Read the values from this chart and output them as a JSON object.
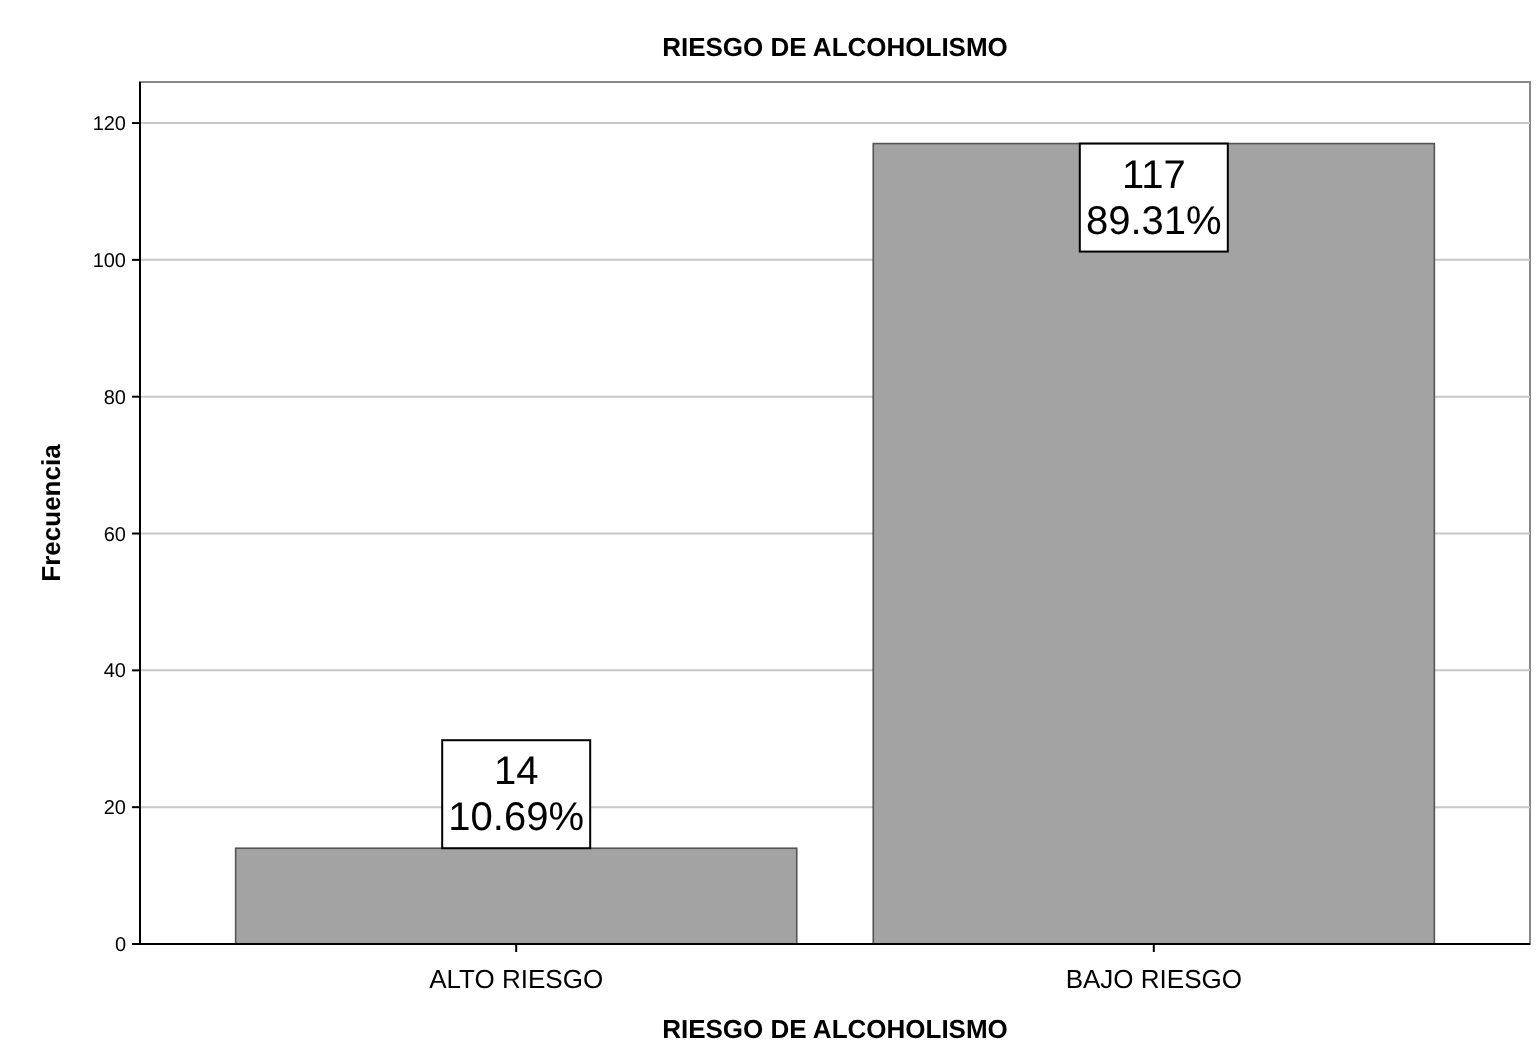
{
  "chart_data": {
    "type": "bar",
    "title": "RIESGO DE ALCOHOLISMO",
    "xlabel": "RIESGO DE ALCOHOLISMO",
    "ylabel": "Frecuencia",
    "categories": [
      "ALTO RIESGO",
      "BAJO RIESGO"
    ],
    "values": [
      14,
      117
    ],
    "value_labels": [
      "14\n10.69%",
      "117\n89.31%"
    ],
    "color": "#a3a3a3",
    "ylim": [
      0,
      126
    ],
    "yticks": [
      0,
      20,
      40,
      60,
      80,
      100,
      120
    ],
    "grid": "y"
  }
}
